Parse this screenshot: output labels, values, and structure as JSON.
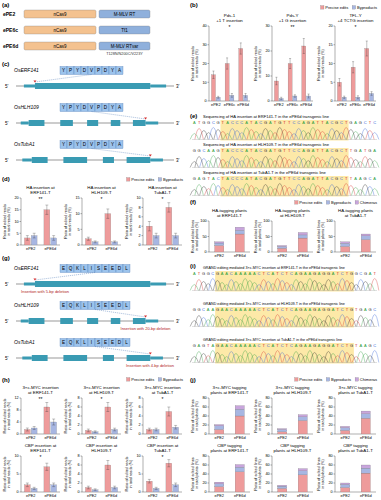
{
  "panel_labels": [
    "(a)",
    "(b)",
    "(c)",
    "(d)",
    "(e)",
    "(f)",
    "(g)",
    "(h)",
    "(i)",
    "(j)"
  ],
  "constructs": [
    {
      "name": "ePE2",
      "parts": [
        {
          "label": "nCas9",
          "color": "#f4c28f"
        },
        {
          "label": "M-MLV RT",
          "color": "#8fb0dc"
        }
      ]
    },
    {
      "name": "ePE6c",
      "parts": [
        {
          "label": "nCas9",
          "color": "#f4c28f"
        },
        {
          "label": "Tf1",
          "color": "#8fb0dc"
        }
      ]
    },
    {
      "name": "ePE6d",
      "parts": [
        {
          "label": "nCas9",
          "color": "#f4c28f"
        },
        {
          "label": "M-MLV RTvar",
          "color": "#8fb0dc",
          "note": "T128N/N200C/V223Y"
        }
      ]
    }
  ],
  "gene_ends": [
    "5'",
    "3'"
  ],
  "genes_c": [
    {
      "name": "OsERF141",
      "tag": "YPYDVPDYA"
    },
    {
      "name": "OsHLH109",
      "tag": "YPYDVPDYA"
    },
    {
      "name": "OsTubA1",
      "tag": "YPYDVPDYA"
    }
  ],
  "sequencing_e": [
    {
      "title": "Sequencing of HA insertion at ERF141-T in the ePE6d transgenic line",
      "left": "ATGGCG",
      "insert": "TACCCATACGATGTTCCAGATTACGCT",
      "right": "GAGCTC"
    },
    {
      "title": "Sequencing of HA insertion at HLH109-T in the ePE6d transgenic line",
      "left": "GGCAAG",
      "insert": "TACCCATACGATGTTCCAGATTACGCT",
      "right": "TGATGA"
    },
    {
      "title": "Sequencing of HA insertion at TubA1-T in the ePE6d transgenic line",
      "left": "GAGTAC",
      "insert": "TACCCATACGATGTTCCAGATTACGCT",
      "right": "TAAGCA"
    }
  ],
  "genes_g": [
    {
      "name": "OsERF141",
      "tag": "EQKLISEEDL",
      "note": "Insertion with 5-bp deletion"
    },
    {
      "name": "OsHLH109",
      "tag": "EQKLISEEDL",
      "note": "Insertion with 20-bp deletion"
    },
    {
      "name": "OsTubA1",
      "tag": "EQKLISEEDL",
      "note": "Insertion with 4-bp deletion"
    }
  ],
  "sequencing_i": [
    {
      "title": "GRAND editing mediated 3×c-MYC insertion at ERF141-T in the ePE6d transgenic line",
      "left": "ATGGC",
      "insert": "GAACAAAAACTCATCTCAGAAGAGGATCTG",
      "right": "GCGAT"
    },
    {
      "title": "GRAND editing mediated 3×c-MYC insertion at HLH109-T in the ePE6d transgenic line",
      "left": "GGCAA",
      "insert": "GAACAAAAACTCATCTCAGAAGAGGATCTG",
      "right": "TGAGC"
    },
    {
      "title": "GRAND editing mediated 3×c-MYC insertion at TubA1-T in the ePE6d transgenic line",
      "left": "GAGTA",
      "insert": "GAACAAAAACTCATCTCAGAAGAGGATCTG",
      "right": "TAAGC"
    }
  ],
  "chart_data": [
    {
      "type": "bar",
      "title": "Pds-1\n+1 T insertion",
      "ylabel": "Ratio of edited reads\nin total reads (%)",
      "categories": [
        "ePE2",
        "ePE6c",
        "ePE6d"
      ],
      "series": [
        {
          "color": "#ee9b9b",
          "values": [
            14,
            20,
            28
          ],
          "errors": [
            2,
            3,
            3
          ]
        },
        {
          "color": "#a7b6e2",
          "values": [
            2,
            3,
            3
          ],
          "errors": [
            0.5,
            1,
            1
          ]
        }
      ],
      "ylim": [
        0,
        40
      ],
      "yticks": [
        0,
        10,
        20,
        30,
        40
      ],
      "annotations": [
        "*"
      ]
    },
    {
      "type": "bar",
      "title": "Pds-Y\n+1 G insertion",
      "ylabel": "Ratio of edited reads\nin total reads (%)",
      "categories": [
        "ePE2",
        "ePE6c",
        "ePE6d"
      ],
      "series": [
        {
          "color": "#ee9b9b",
          "values": [
            8,
            15,
            22
          ],
          "errors": [
            1.5,
            2,
            3
          ]
        },
        {
          "color": "#a7b6e2",
          "values": [
            1,
            2,
            2
          ],
          "errors": [
            0.5,
            0.5,
            0.8
          ]
        }
      ],
      "ylim": [
        0,
        30
      ],
      "yticks": [
        0,
        10,
        20,
        30
      ],
      "annotations": [
        "**"
      ]
    },
    {
      "type": "bar",
      "title": "TFL-Y\n+4 TCTG insertion",
      "ylabel": "Ratio of edited reads\nin total reads (%)",
      "categories": [
        "ePE2",
        "ePE6c",
        "ePE6d"
      ],
      "series": [
        {
          "name": "Precise edits",
          "color": "#ee9b9b",
          "values": [
            5,
            9,
            14
          ],
          "errors": [
            1,
            1.5,
            2
          ]
        },
        {
          "name": "Byproducts",
          "color": "#a7b6e2",
          "values": [
            1,
            1,
            2
          ],
          "errors": [
            0.3,
            0.4,
            0.5
          ]
        }
      ],
      "ylim": [
        0,
        20
      ],
      "yticks": [
        0,
        5,
        10,
        15,
        20
      ],
      "annotations": [
        "*"
      ],
      "legend": "top-right"
    },
    {
      "type": "bar",
      "title": "HA insertion at\nERF141-T",
      "ylabel": "Ratio of edited reads\nin total reads (%)",
      "categories": [
        "ePE2",
        "ePE6d"
      ],
      "series": [
        {
          "color": "#ee9b9b",
          "values": [
            3,
            15
          ],
          "errors": [
            1,
            2
          ]
        },
        {
          "color": "#a7b6e2",
          "values": [
            4,
            3
          ],
          "errors": [
            1,
            1
          ]
        }
      ],
      "ylim": [
        0,
        20
      ],
      "yticks": [
        0,
        5,
        10,
        15,
        20
      ],
      "annotations": [
        "**"
      ]
    },
    {
      "type": "bar",
      "title": "HA insertion at\nHLH109-T",
      "ylabel": "Ratio of edited reads\nin total reads (%)",
      "categories": [
        "ePE2",
        "ePE6d"
      ],
      "series": [
        {
          "color": "#ee9b9b",
          "values": [
            2,
            10
          ],
          "errors": [
            0.5,
            1.5
          ]
        },
        {
          "color": "#a7b6e2",
          "values": [
            1,
            1
          ],
          "errors": [
            0.3,
            0.3
          ]
        }
      ],
      "ylim": [
        0,
        15
      ],
      "yticks": [
        0,
        5,
        10,
        15
      ],
      "annotations": [
        "*"
      ]
    },
    {
      "type": "bar",
      "title": "HA insertion at\nTubA1-T",
      "ylabel": "Ratio of edited reads\nin total reads (%)",
      "categories": [
        "ePE2",
        "ePE6d"
      ],
      "series": [
        {
          "name": "Precise edits",
          "color": "#ee9b9b",
          "values": [
            4,
            8
          ],
          "errors": [
            1,
            1
          ]
        },
        {
          "name": "Byproducts",
          "color": "#a7b6e2",
          "values": [
            2,
            2
          ],
          "errors": [
            0.5,
            0.5
          ]
        }
      ],
      "ylim": [
        0,
        10
      ],
      "yticks": [
        0,
        2,
        4,
        6,
        8,
        10
      ],
      "annotations": [
        "*"
      ],
      "legend": "top-right"
    },
    {
      "type": "bar",
      "stacked": true,
      "title": "HA-tagging plants\nat ERF141-T",
      "ylabel": "Ratio of edited lines\nin total plants (%)",
      "categories": [
        "ePE2",
        "ePE6d"
      ],
      "series": [
        {
          "color": "#ee9b9b",
          "values": [
            21,
            58
          ]
        },
        {
          "color": "#a7b6e2",
          "values": [
            8,
            12
          ]
        },
        {
          "color": "#c8a5dc",
          "values": [
            4,
            10
          ]
        }
      ],
      "ylim": [
        0,
        100
      ],
      "yticks": [
        0,
        50,
        100
      ]
    },
    {
      "type": "bar",
      "stacked": true,
      "title": "HA-tagging plants\nat HLH109-T",
      "ylabel": "Ratio of edited lines\nin total plants (%)",
      "categories": [
        "ePE2",
        "ePE6d"
      ],
      "series": [
        {
          "color": "#ee9b9b",
          "values": [
            12,
            45
          ]
        },
        {
          "color": "#a7b6e2",
          "values": [
            6,
            10
          ]
        },
        {
          "color": "#c8a5dc",
          "values": [
            3,
            8
          ]
        }
      ],
      "ylim": [
        0,
        100
      ],
      "yticks": [
        0,
        50,
        100
      ]
    },
    {
      "type": "bar",
      "stacked": true,
      "title": "HA-tagging plants\nat TubA1-T",
      "ylabel": "Ratio of edited lines\nin total plants (%)",
      "categories": [
        "ePE2",
        "ePE6d"
      ],
      "series": [
        {
          "name": "Precise edits",
          "color": "#ee9b9b",
          "values": [
            18,
            40
          ]
        },
        {
          "name": "Byproducts",
          "color": "#a7b6e2",
          "values": [
            10,
            12
          ]
        },
        {
          "name": "Chimeras",
          "color": "#c8a5dc",
          "values": [
            5,
            6
          ]
        }
      ],
      "ylim": [
        0,
        100
      ],
      "yticks": [
        0,
        50,
        100
      ],
      "legend": "top-right"
    },
    {
      "type": "bar",
      "title": "3×c-MYC insertion\nat ERF141-T",
      "ylabel": "Ratio of edited reads\nin total reads (%)",
      "categories": [
        "ePE2",
        "ePE6d"
      ],
      "series": [
        {
          "color": "#ee9b9b",
          "values": [
            1.5,
            9
          ],
          "errors": [
            0.5,
            1.5
          ]
        },
        {
          "color": "#a7b6e2",
          "values": [
            2,
            4
          ],
          "errors": [
            0.5,
            1
          ]
        }
      ],
      "ylim": [
        0,
        12
      ],
      "yticks": [
        0,
        4,
        8,
        12
      ],
      "annotations": [
        "**"
      ]
    },
    {
      "type": "bar",
      "title": "3×c-MYC insertion\nat HLH109-T",
      "ylabel": "Ratio of edited reads\nin total reads (%)",
      "categories": [
        "ePE2",
        "ePE6d"
      ],
      "series": [
        {
          "color": "#ee9b9b",
          "values": [
            0.8,
            6
          ],
          "errors": [
            0.3,
            1
          ]
        },
        {
          "color": "#a7b6e2",
          "values": [
            0.5,
            1
          ],
          "errors": [
            0.2,
            0.3
          ]
        }
      ],
      "ylim": [
        0,
        8
      ],
      "yticks": [
        0,
        2,
        4,
        6,
        8
      ],
      "annotations": [
        "*"
      ]
    },
    {
      "type": "bar",
      "title": "3×c-MYC insertion\nat TubA1-T",
      "ylabel": "Ratio of edited reads\nin total reads (%)",
      "categories": [
        "ePE2",
        "ePE6d"
      ],
      "series": [
        {
          "name": "Precise edits",
          "color": "#ee9b9b",
          "values": [
            1,
            5
          ],
          "errors": [
            0.3,
            1
          ]
        },
        {
          "name": "Byproducts",
          "color": "#a7b6e2",
          "values": [
            1,
            1.5
          ],
          "errors": [
            0.3,
            0.4
          ]
        }
      ],
      "ylim": [
        0,
        8
      ],
      "yticks": [
        0,
        2,
        4,
        6,
        8
      ],
      "annotations": [
        "*"
      ],
      "legend": "top-right"
    },
    {
      "type": "bar",
      "title": "CBP insertion at\nERF141-T",
      "ylabel": "Ratio of edited reads\nin total reads (%)",
      "categories": [
        "ePE2",
        "ePE6d"
      ],
      "series": [
        {
          "color": "#ee9b9b",
          "values": [
            2,
            7
          ],
          "errors": [
            0.5,
            1
          ]
        },
        {
          "color": "#a7b6e2",
          "values": [
            1,
            2
          ],
          "errors": [
            0.3,
            0.5
          ]
        }
      ],
      "ylim": [
        0,
        10
      ],
      "yticks": [
        0,
        5,
        10
      ],
      "annotations": [
        "*"
      ]
    },
    {
      "type": "bar",
      "title": "CBP insertion at\nHLH109-T",
      "ylabel": "Ratio of edited reads\nin total reads (%)",
      "categories": [
        "ePE2",
        "ePE6d"
      ],
      "series": [
        {
          "color": "#ee9b9b",
          "values": [
            1,
            6
          ],
          "errors": [
            0.3,
            1
          ]
        },
        {
          "color": "#a7b6e2",
          "values": [
            0.5,
            1
          ],
          "errors": [
            0.2,
            0.3
          ]
        }
      ],
      "ylim": [
        0,
        8
      ],
      "yticks": [
        0,
        2,
        4,
        6,
        8
      ]
    },
    {
      "type": "bar",
      "title": "CBP insertion at\nTubA1-T",
      "ylabel": "Ratio of edited reads\nin total reads (%)",
      "categories": [
        "ePE2",
        "ePE6d"
      ],
      "series": [
        {
          "color": "#ee9b9b",
          "values": [
            3,
            8
          ],
          "errors": [
            0.5,
            1
          ]
        },
        {
          "color": "#a7b6e2",
          "values": [
            1,
            2
          ],
          "errors": [
            0.3,
            0.5
          ]
        }
      ],
      "ylim": [
        0,
        10
      ],
      "yticks": [
        0,
        5,
        10
      ],
      "annotations": [
        "*"
      ]
    },
    {
      "type": "bar",
      "stacked": true,
      "title": "3×c-MYC tagging\nplants at ERF141-T",
      "ylabel": "Ratio of edited lines\nin total plants (%)",
      "categories": [
        "ePE2",
        "ePE6d"
      ],
      "series": [
        {
          "color": "#ee9b9b",
          "values": [
            10,
            40
          ]
        },
        {
          "color": "#a7b6e2",
          "values": [
            8,
            15
          ]
        },
        {
          "color": "#c8a5dc",
          "values": [
            3,
            8
          ]
        }
      ],
      "ylim": [
        0,
        80
      ],
      "yticks": [
        0,
        20,
        40,
        60,
        80
      ]
    },
    {
      "type": "bar",
      "stacked": true,
      "title": "3×c-MYC tagging\nplants at HLH109-T",
      "ylabel": "Ratio of edited lines\nin total plants (%)",
      "categories": [
        "ePE2",
        "ePE6d"
      ],
      "series": [
        {
          "color": "#ee9b9b",
          "values": [
            5,
            30
          ]
        },
        {
          "color": "#a7b6e2",
          "values": [
            5,
            8
          ]
        },
        {
          "color": "#c8a5dc",
          "values": [
            2,
            5
          ]
        }
      ],
      "ylim": [
        0,
        80
      ],
      "yticks": [
        0,
        20,
        40,
        60,
        80
      ]
    },
    {
      "type": "bar",
      "stacked": true,
      "title": "3×c-MYC tagging\nplants at TubA1-T",
      "ylabel": "Ratio of edited lines\nin total plants (%)",
      "categories": [
        "ePE2",
        "ePE6d"
      ],
      "series": [
        {
          "name": "Precise edits",
          "color": "#ee9b9b",
          "values": [
            8,
            35
          ]
        },
        {
          "name": "Byproducts",
          "color": "#a7b6e2",
          "values": [
            6,
            10
          ]
        },
        {
          "name": "Chimeras",
          "color": "#c8a5dc",
          "values": [
            3,
            6
          ]
        }
      ],
      "ylim": [
        0,
        80
      ],
      "yticks": [
        0,
        20,
        40,
        60,
        80
      ],
      "legend": "top-right"
    },
    {
      "type": "bar",
      "stacked": true,
      "title": "CBP tagging\nplants at ERF141-T",
      "ylabel": "Ratio of edited lines\nin total plants (%)",
      "categories": [
        "ePE2",
        "ePE6d"
      ],
      "series": [
        {
          "color": "#ee9b9b",
          "values": [
            12,
            45
          ]
        },
        {
          "color": "#a7b6e2",
          "values": [
            6,
            10
          ]
        },
        {
          "color": "#c8a5dc",
          "values": [
            4,
            6
          ]
        }
      ],
      "ylim": [
        0,
        80
      ],
      "yticks": [
        0,
        20,
        40,
        60,
        80
      ]
    },
    {
      "type": "bar",
      "stacked": true,
      "title": "CBP tagging\nplants at HLH109-T",
      "ylabel": "Ratio of edited lines\nin total plants (%)",
      "categories": [
        "ePE2",
        "ePE6d"
      ],
      "series": [
        {
          "color": "#ee9b9b",
          "values": [
            8,
            38
          ]
        },
        {
          "color": "#a7b6e2",
          "values": [
            5,
            9
          ]
        },
        {
          "color": "#c8a5dc",
          "values": [
            2,
            5
          ]
        }
      ],
      "ylim": [
        0,
        80
      ],
      "yticks": [
        0,
        20,
        40,
        60,
        80
      ]
    },
    {
      "type": "bar",
      "stacked": true,
      "title": "CBP tagging\nplants at TubA1-T",
      "ylabel": "Ratio of edited lines\nin total plants (%)",
      "categories": [
        "ePE2",
        "ePE6d"
      ],
      "series": [
        {
          "color": "#ee9b9b",
          "values": [
            10,
            42
          ]
        },
        {
          "color": "#a7b6e2",
          "values": [
            7,
            11
          ]
        },
        {
          "color": "#c8a5dc",
          "values": [
            3,
            7
          ]
        }
      ],
      "ylim": [
        0,
        80
      ],
      "yticks": [
        0,
        20,
        40,
        60,
        80
      ]
    }
  ]
}
